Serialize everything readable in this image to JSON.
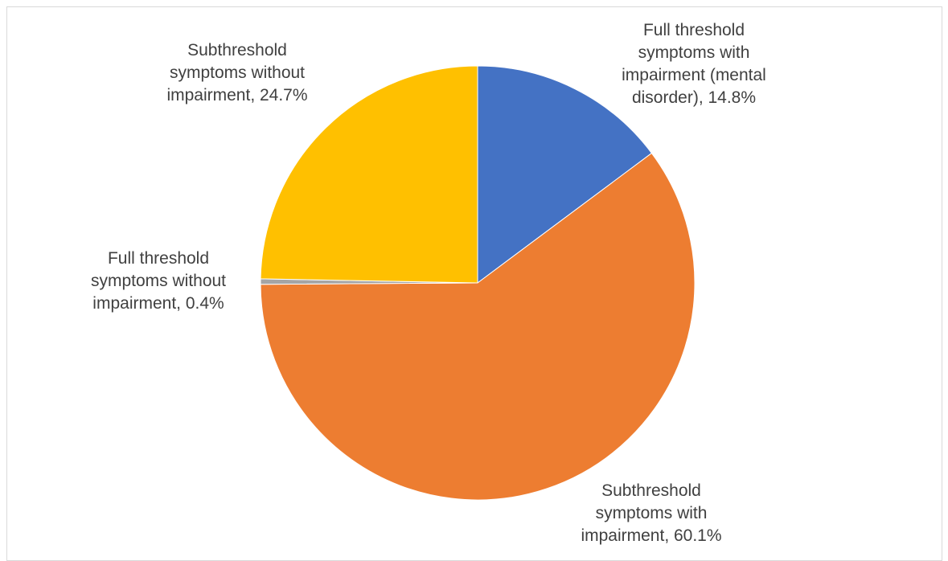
{
  "chart_data": {
    "type": "pie",
    "title": "",
    "start_angle_deg": 0,
    "direction": "clockwise",
    "slices": [
      {
        "label_lines": [
          "Full threshold",
          "symptoms with",
          "impairment (mental",
          "disorder), 14.8%"
        ],
        "category": "Full threshold symptoms with impairment (mental disorder)",
        "value": 14.8,
        "color": "#4472C4"
      },
      {
        "label_lines": [
          "Subthreshold",
          "symptoms with",
          "impairment, 60.1%"
        ],
        "category": "Subthreshold symptoms with impairment",
        "value": 60.1,
        "color": "#ED7D31"
      },
      {
        "label_lines": [
          "Full threshold",
          "symptoms without",
          "impairment, 0.4%"
        ],
        "category": "Full threshold symptoms without impairment",
        "value": 0.4,
        "color": "#A5A5A5"
      },
      {
        "label_lines": [
          "Subthreshold",
          "symptoms without",
          "impairment, 24.7%"
        ],
        "category": "Subthreshold symptoms without impairment",
        "value": 24.7,
        "color": "#FFC000"
      }
    ],
    "legend": "none"
  }
}
